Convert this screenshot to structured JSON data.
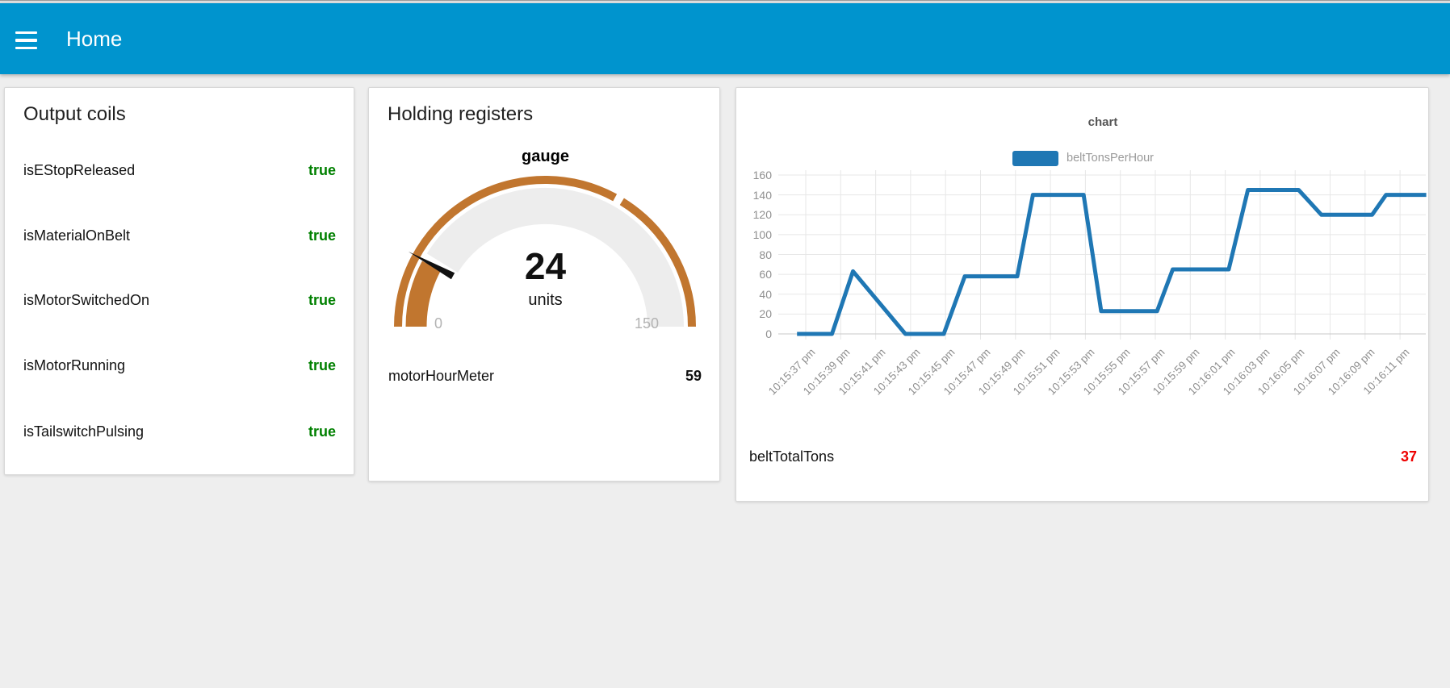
{
  "header": {
    "title": "Home"
  },
  "cards": {
    "output_coils": {
      "title": "Output coils",
      "value_color": "#008000",
      "rows": [
        {
          "label": "isEStopReleased",
          "value": "true"
        },
        {
          "label": "isMaterialOnBelt",
          "value": "true"
        },
        {
          "label": "isMotorSwitchedOn",
          "value": "true"
        },
        {
          "label": "isMotorRunning",
          "value": "true"
        },
        {
          "label": "isTailswitchPulsing",
          "value": "true"
        }
      ]
    },
    "holding_registers": {
      "title": "Holding registers",
      "gauge": {
        "label": "gauge",
        "value_text": "24",
        "units": "units",
        "min_label": "0",
        "max_label": "150"
      },
      "rows": [
        {
          "label": "motorHourMeter",
          "value": "59"
        }
      ]
    },
    "chart": {
      "title": "chart",
      "legend": [
        {
          "label": "beltTonsPerHour",
          "color": "#1f77b4"
        }
      ],
      "footer_row": {
        "label": "beltTotalTons",
        "value": "37",
        "value_color": "#ee0000"
      }
    }
  },
  "chart_data": [
    {
      "type": "gauge",
      "title": "gauge",
      "value": 24,
      "min": 0,
      "max": 150,
      "units": "units",
      "sector_boundary": 100,
      "arc_color": "#c1762f",
      "track_color": "#ededed",
      "needle_color": "#111111"
    },
    {
      "type": "line",
      "title": "chart",
      "legend_position": "top",
      "grid": true,
      "ylim": [
        0,
        160
      ],
      "y_ticks": [
        0,
        20,
        40,
        60,
        80,
        100,
        120,
        140,
        160
      ],
      "x_tick_seconds": [
        0,
        2,
        4,
        6,
        8,
        10,
        12,
        14,
        16,
        18,
        20,
        22,
        24,
        26,
        28,
        30,
        32,
        34
      ],
      "x_tick_labels": [
        "10:15:37 pm",
        "10:15:39 pm",
        "10:15:41 pm",
        "10:15:43 pm",
        "10:15:45 pm",
        "10:15:47 pm",
        "10:15:49 pm",
        "10:15:51 pm",
        "10:15:53 pm",
        "10:15:55 pm",
        "10:15:57 pm",
        "10:15:59 pm",
        "10:16:01 pm",
        "10:16:03 pm",
        "10:16:05 pm",
        "10:16:07 pm",
        "10:16:09 pm",
        "10:16:11 pm"
      ],
      "series": [
        {
          "name": "beltTonsPerHour",
          "color": "#1f77b4",
          "points": [
            [
              -0.5,
              0
            ],
            [
              1.5,
              0
            ],
            [
              2.7,
              63
            ],
            [
              5.7,
              0
            ],
            [
              7.9,
              0
            ],
            [
              9.1,
              58
            ],
            [
              12.1,
              58
            ],
            [
              13.0,
              140
            ],
            [
              15.9,
              140
            ],
            [
              16.9,
              23
            ],
            [
              20.1,
              23
            ],
            [
              21.0,
              65
            ],
            [
              24.2,
              65
            ],
            [
              25.3,
              145
            ],
            [
              28.2,
              145
            ],
            [
              29.5,
              120
            ],
            [
              32.4,
              120
            ],
            [
              33.2,
              140
            ],
            [
              35.5,
              140
            ]
          ]
        }
      ]
    }
  ]
}
